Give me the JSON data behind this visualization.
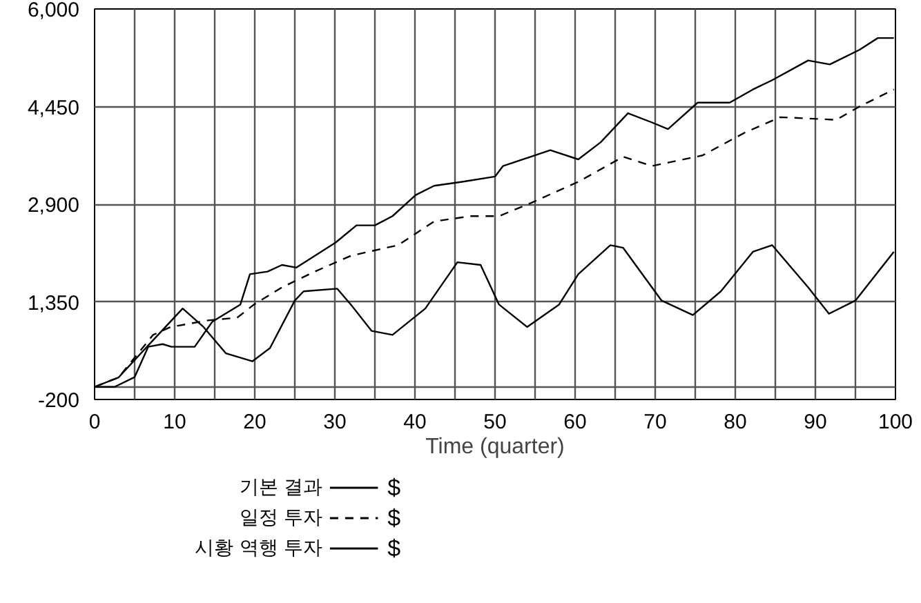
{
  "chart_data": {
    "type": "line",
    "xlabel": "Time (quarter)",
    "xlim": [
      0,
      100
    ],
    "ylim": [
      -200,
      6000
    ],
    "xticks": [
      0,
      {
        "value": 5,
        "label": null
      },
      10,
      {
        "value": 15,
        "label": null
      },
      20,
      {
        "value": 25,
        "label": null
      },
      30,
      {
        "value": 35,
        "label": null
      },
      40,
      {
        "value": 45,
        "label": null
      },
      50,
      {
        "value": 55,
        "label": null
      },
      60,
      {
        "value": 65,
        "label": null
      },
      70,
      {
        "value": 75,
        "label": null
      },
      80,
      {
        "value": 85,
        "label": null
      },
      90,
      {
        "value": 95,
        "label": null
      },
      100
    ],
    "yticks": [
      {
        "value": -200,
        "label": "-200"
      },
      {
        "value": 0,
        "label": null
      },
      {
        "value": 1350,
        "label": "1,350"
      },
      {
        "value": 2900,
        "label": "2,900"
      },
      {
        "value": 4450,
        "label": "4,450"
      },
      {
        "value": 6000,
        "label": "6,000"
      }
    ],
    "grid": true,
    "legend": "bottom",
    "annotations": [
      "$",
      "$",
      "$"
    ],
    "series": [
      {
        "name": "기본 결과",
        "color": "#000000",
        "line_style": "solid",
        "x": [
          0,
          3,
          7,
          11,
          13.6,
          16.4,
          19.7,
          21.9,
          25,
          26.1,
          30.3,
          32,
          34.6,
          37.2,
          41.3,
          45.3,
          48.2,
          50.5,
          54,
          58,
          60.4,
          64.4,
          66,
          70.8,
          74.7,
          78.2,
          82.2,
          84.6,
          89.1,
          91.7,
          95,
          99.8
        ],
        "values": [
          0,
          150,
          700,
          1244,
          951,
          532,
          406,
          616,
          1370,
          1517,
          1559,
          1307,
          888,
          825,
          1244,
          1978,
          1936,
          1307,
          951,
          1307,
          1789,
          2250,
          2208,
          1370,
          1140,
          1517,
          2145,
          2250,
          1580,
          1161,
          1370,
          2145
        ]
      },
      {
        "name": "일정 투자",
        "color": "#000000",
        "line_style": "dashed",
        "x": [
          0,
          3,
          7.3,
          9.5,
          14.2,
          17.8,
          19.9,
          23.4,
          27.5,
          32,
          37.9,
          42.4,
          47,
          50.5,
          54.5,
          60.4,
          66,
          69.6,
          75.9,
          81.1,
          85.6,
          92.6,
          95.5,
          99.8
        ],
        "values": [
          0,
          150,
          825,
          951,
          1056,
          1098,
          1307,
          1580,
          1831,
          2082,
          2250,
          2627,
          2711,
          2711,
          2920,
          3256,
          3654,
          3507,
          3675,
          4031,
          4282,
          4240,
          4450,
          4722
        ]
      },
      {
        "name": "시황 역행 투자",
        "color": "#000000",
        "line_style": "solid",
        "x": [
          0,
          2.5,
          5,
          6.7,
          8.5,
          9.6,
          12.5,
          14.7,
          18.2,
          19.4,
          21.6,
          23.4,
          25.2,
          27.5,
          30.1,
          32.7,
          35,
          37.2,
          40.1,
          42.4,
          45.9,
          50,
          51,
          56.9,
          60.4,
          63.2,
          66.6,
          69.6,
          71.6,
          75.3,
          79.3,
          82.2,
          84.6,
          89.1,
          91.8,
          95.5,
          97.8,
          99.8
        ],
        "values": [
          0,
          0,
          155,
          637,
          679,
          637,
          637,
          1035,
          1307,
          1789,
          1831,
          1936,
          1894,
          2082,
          2292,
          2564,
          2564,
          2711,
          3046,
          3193,
          3256,
          3339,
          3507,
          3758,
          3612,
          3884,
          4345,
          4198,
          4093,
          4513,
          4513,
          4722,
          4869,
          5183,
          5120,
          5351,
          5539,
          5539
        ]
      }
    ]
  }
}
